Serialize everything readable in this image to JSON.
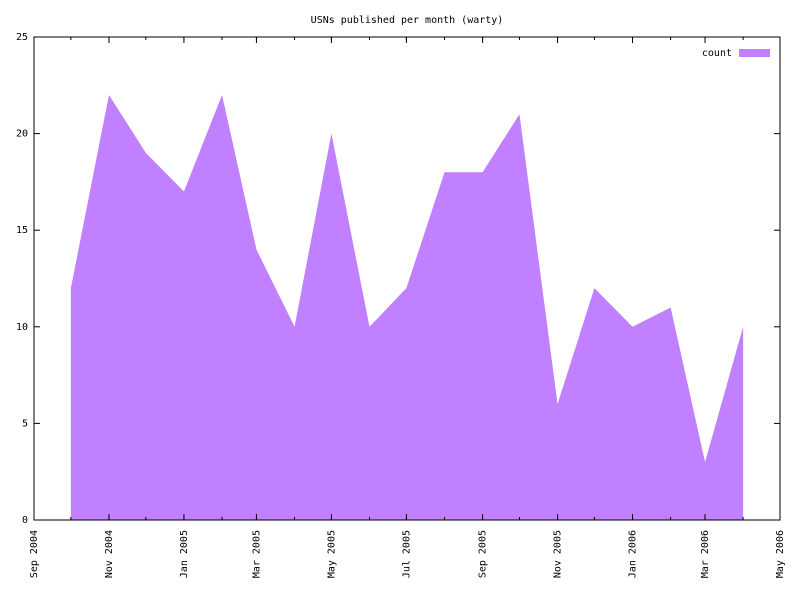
{
  "chart_data": {
    "type": "area",
    "title": "USNs published per month (warty)",
    "x": [
      "2004-10",
      "2004-11",
      "2004-12",
      "2005-01",
      "2005-02",
      "2005-03",
      "2005-04",
      "2005-05",
      "2005-06",
      "2005-07",
      "2005-08",
      "2005-09",
      "2005-10",
      "2005-11",
      "2005-12",
      "2006-01",
      "2006-02",
      "2006-03",
      "2006-04"
    ],
    "series": [
      {
        "name": "count",
        "color": "#c080ff",
        "values": [
          12,
          22,
          19,
          17,
          22,
          14,
          10,
          20,
          10,
          12,
          18,
          18,
          21,
          6,
          12,
          10,
          11,
          3,
          10
        ]
      }
    ],
    "xlim": [
      "2004-09",
      "2006-05"
    ],
    "xticks": [
      {
        "value": "2004-09",
        "label": "Sep 2004"
      },
      {
        "value": "2004-11",
        "label": "Nov 2004"
      },
      {
        "value": "2005-01",
        "label": "Jan 2005"
      },
      {
        "value": "2005-03",
        "label": "Mar 2005"
      },
      {
        "value": "2005-05",
        "label": "May 2005"
      },
      {
        "value": "2005-07",
        "label": "Jul 2005"
      },
      {
        "value": "2005-09",
        "label": "Sep 2005"
      },
      {
        "value": "2005-11",
        "label": "Nov 2005"
      },
      {
        "value": "2006-01",
        "label": "Jan 2006"
      },
      {
        "value": "2006-03",
        "label": "Mar 2006"
      },
      {
        "value": "2006-05",
        "label": "May 2006"
      }
    ],
    "ylim": [
      0,
      25
    ],
    "yticks": [
      0,
      5,
      10,
      15,
      20,
      25
    ],
    "legend": "top-right",
    "grid": false
  }
}
